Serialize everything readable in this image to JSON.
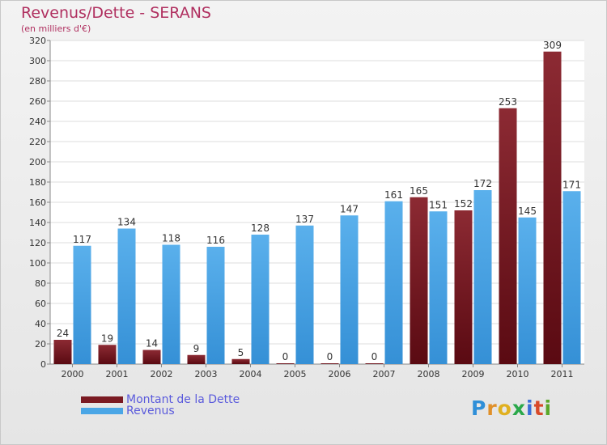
{
  "chart_data": {
    "type": "bar",
    "title": "Revenus/Dette - SERANS",
    "subtitle": "(en milliers d'€)",
    "categories": [
      "2000",
      "2001",
      "2002",
      "2003",
      "2004",
      "2005",
      "2006",
      "2007",
      "2008",
      "2009",
      "2010",
      "2011"
    ],
    "series": [
      {
        "name": "Montant de la Dette",
        "color": "#7a1a22",
        "values": [
          24,
          19,
          14,
          9,
          5,
          0,
          0,
          0,
          165,
          152,
          253,
          309
        ]
      },
      {
        "name": "Revenus",
        "color": "#4aa6e6",
        "values": [
          117,
          134,
          118,
          116,
          128,
          137,
          147,
          161,
          151,
          172,
          145,
          171
        ]
      }
    ],
    "ylim": [
      0,
      320
    ],
    "yticks": [
      0,
      20,
      40,
      60,
      80,
      100,
      120,
      140,
      160,
      180,
      200,
      220,
      240,
      260,
      280,
      300,
      320
    ],
    "grid": true,
    "legend": "bottom-left"
  },
  "branding": {
    "logo_letters": [
      "P",
      "r",
      "o",
      "x",
      "i",
      "t",
      "i"
    ],
    "logo_colors": [
      "#2f8fd8",
      "#e0902a",
      "#e0b020",
      "#2aa84a",
      "#3b6fd8",
      "#d84a2a",
      "#5aa82a"
    ]
  }
}
